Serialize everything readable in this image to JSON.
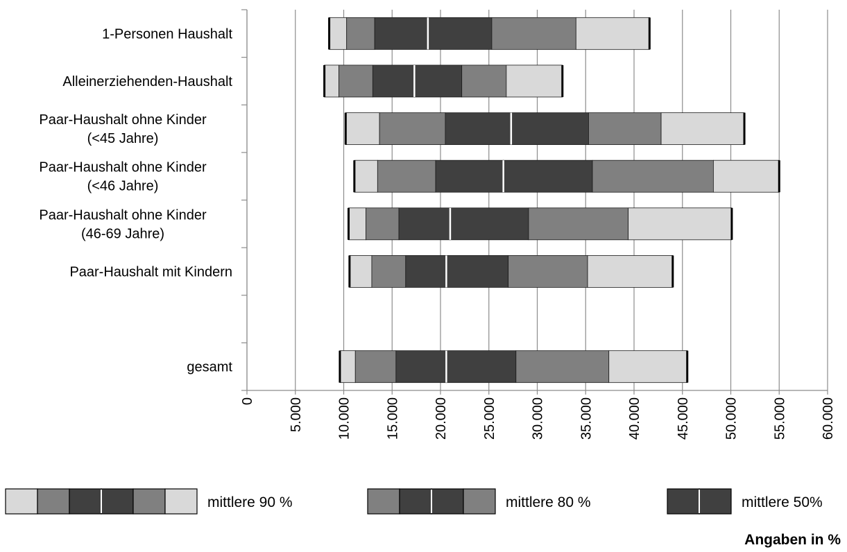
{
  "chart_data": {
    "type": "bar",
    "subtype": "stacked-range",
    "orientation": "horizontal",
    "categories": [
      {
        "lines": [
          "1-Personen Haushalt"
        ]
      },
      {
        "lines": [
          "Alleinerziehenden-Haushalt"
        ]
      },
      {
        "lines": [
          "Paar-Haushalt ohne Kinder",
          "(<45 Jahre)"
        ]
      },
      {
        "lines": [
          "Paar-Haushalt ohne Kinder",
          "(<46 Jahre)"
        ]
      },
      {
        "lines": [
          "Paar-Haushalt ohne Kinder",
          "(46-69 Jahre)"
        ]
      },
      {
        "lines": [
          "Paar-Haushalt mit Kindern"
        ]
      },
      {
        "lines": [
          ""
        ]
      },
      {
        "lines": [
          "gesamt"
        ]
      }
    ],
    "series": [
      {
        "values": [
          [
            8500,
            10300,
            13200,
            18700,
            25300,
            34000,
            41600
          ],
          [
            8000,
            9500,
            13000,
            17300,
            22200,
            26800,
            32600
          ],
          [
            10200,
            13700,
            20500,
            27300,
            35300,
            42800,
            51400
          ],
          [
            11100,
            13500,
            19500,
            26500,
            35700,
            48200,
            55000
          ],
          [
            10500,
            12300,
            15700,
            21000,
            29100,
            39400,
            50100
          ],
          [
            10600,
            12900,
            16400,
            20600,
            27000,
            35200,
            44000
          ],
          null,
          [
            9600,
            11200,
            15400,
            20600,
            27800,
            37400,
            45500
          ]
        ]
      }
    ],
    "segment_colors": [
      "#d9d9d9",
      "#808080",
      "#404040",
      "#404040",
      "#808080",
      "#d9d9d9"
    ],
    "xlim": [
      0,
      60000
    ],
    "xticks": [
      "0",
      "5.000",
      "10.000",
      "15.000",
      "20.000",
      "25.000",
      "30.000",
      "35.000",
      "40.000",
      "45.000",
      "50.000",
      "55.000",
      "60.000"
    ],
    "grid": true,
    "legend": [
      {
        "label": "mittlere 90 %",
        "swatches": [
          "#d9d9d9",
          "#808080",
          "#404040",
          "#404040",
          "#808080",
          "#d9d9d9"
        ]
      },
      {
        "label": "mittlere 80 %",
        "swatches": [
          "#808080",
          "#404040",
          "#404040",
          "#808080"
        ]
      },
      {
        "label": "mittlere 50%",
        "swatches": [
          "#404040",
          "#404040"
        ]
      }
    ],
    "legend_position": "bottom",
    "note": "Angaben in %"
  }
}
